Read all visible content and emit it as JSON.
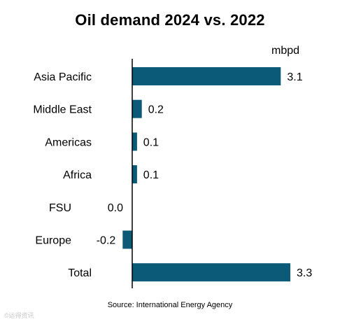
{
  "chart_data": {
    "type": "bar",
    "orientation": "horizontal",
    "title": "Oil demand 2024 vs. 2022",
    "unit": "mbpd",
    "categories": [
      "Asia Pacific",
      "Middle East",
      "Americas",
      "Africa",
      "FSU",
      "Europe",
      "Total"
    ],
    "values": [
      3.1,
      0.2,
      0.1,
      0.1,
      0.0,
      -0.2,
      3.3
    ],
    "value_labels": [
      "3.1",
      "0.2",
      "0.1",
      "0.1",
      "0.0",
      "-0.2",
      "3.3"
    ],
    "xlim": [
      -0.2,
      3.3
    ],
    "grid": false,
    "bar_color": "#0b5a78",
    "source": "Source: International Energy Agency"
  },
  "watermark": "©运得资讯"
}
